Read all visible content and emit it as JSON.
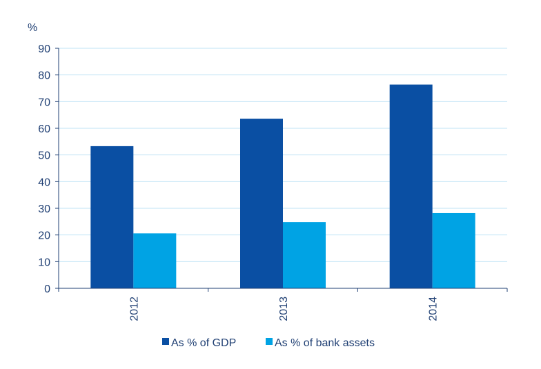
{
  "chart_data": {
    "type": "bar",
    "title": "",
    "xlabel": "",
    "ylabel": "%",
    "ylim": [
      0,
      90
    ],
    "yticks": [
      0,
      10,
      20,
      30,
      40,
      50,
      60,
      70,
      80,
      90
    ],
    "grid": true,
    "legend_position": "bottom",
    "categories": [
      "2012",
      "2013",
      "2014"
    ],
    "series": [
      {
        "name": "As % of GDP",
        "color": "#0a4fa3",
        "values": [
          53.3,
          63.6,
          76.4
        ]
      },
      {
        "name": "As % of bank assets",
        "color": "#00a3e4",
        "values": [
          20.6,
          24.8,
          28.2
        ]
      }
    ]
  },
  "colors": {
    "axis": "#1f3f73",
    "grid": "#bfe3f5",
    "text": "#1f3f73"
  }
}
